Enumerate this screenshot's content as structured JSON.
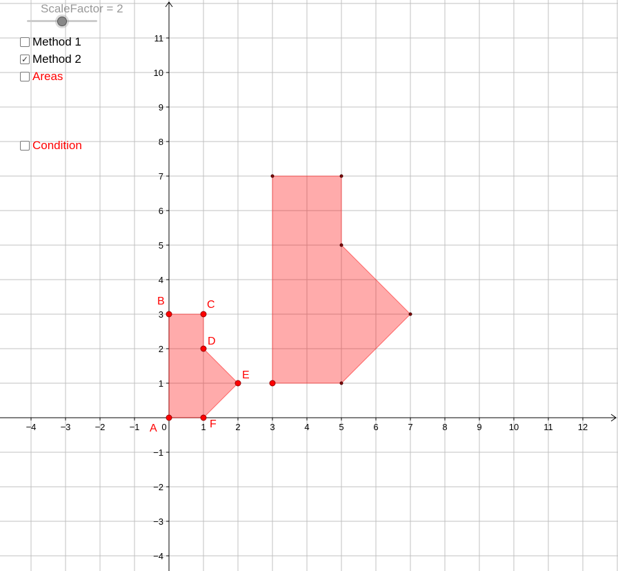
{
  "slider": {
    "label": "ScaleFactor = 2",
    "name": "ScaleFactor",
    "value": 2
  },
  "checkboxes": [
    {
      "label": "Method 1",
      "checked": false,
      "color": "#000000"
    },
    {
      "label": "Method 2",
      "checked": true,
      "color": "#000000"
    },
    {
      "label": "Areas",
      "checked": false,
      "color": "#ff0000"
    },
    {
      "label": "Condition",
      "checked": false,
      "color": "#ff0000"
    }
  ],
  "axes": {
    "xrange": [
      -4.9,
      13.02
    ],
    "yrange": [
      -4.44,
      12.1
    ],
    "x_ticks": [
      -4,
      -3,
      -2,
      -1,
      1,
      2,
      3,
      4,
      5,
      6,
      7,
      8,
      9,
      10,
      11,
      12
    ],
    "y_ticks": [
      -4,
      -3,
      -2,
      -1,
      1,
      2,
      3,
      4,
      5,
      6,
      7,
      8,
      9,
      10,
      11
    ],
    "origin_label": "0",
    "grid": true
  },
  "colors": {
    "fill": "#ff0000",
    "fill_opacity": 0.33,
    "point": "#ff0000",
    "label": "#ff0000"
  },
  "original_polygon": {
    "points": [
      {
        "name": "A",
        "x": 0,
        "y": 0
      },
      {
        "name": "B",
        "x": 0,
        "y": 3
      },
      {
        "name": "C",
        "x": 1,
        "y": 3
      },
      {
        "name": "D",
        "x": 1,
        "y": 2
      },
      {
        "name": "E",
        "x": 2,
        "y": 1
      },
      {
        "name": "F",
        "x": 1,
        "y": 0
      }
    ]
  },
  "image_polygon": {
    "points": [
      {
        "x": 3,
        "y": 1
      },
      {
        "x": 3,
        "y": 7
      },
      {
        "x": 5,
        "y": 7
      },
      {
        "x": 5,
        "y": 5
      },
      {
        "x": 7,
        "y": 3
      },
      {
        "x": 5,
        "y": 1
      }
    ],
    "center": {
      "x": 3,
      "y": 1
    }
  }
}
